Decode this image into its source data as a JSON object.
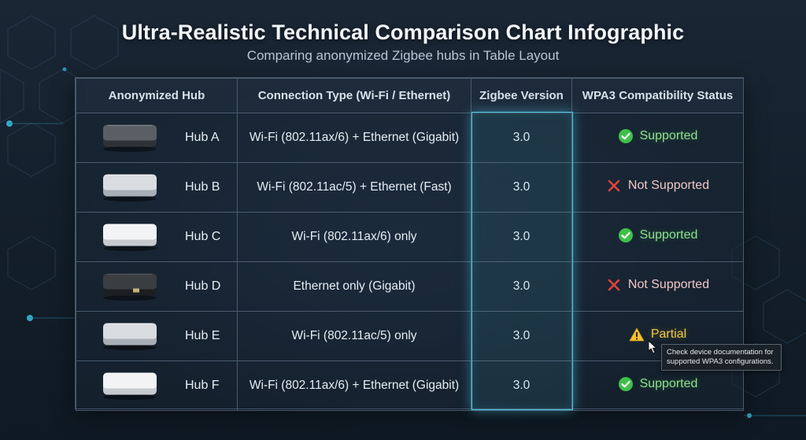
{
  "header": {
    "title": "Ultra-Realistic Technical Comparison Chart Infographic",
    "subtitle": "Comparing anonymized Zigbee hubs in Table Layout"
  },
  "table": {
    "columns": [
      "Anonymized Hub",
      "Connection Type (Wi-Fi / Ethernet)",
      "Zigbee Version",
      "WPA3 Compatibility Status"
    ],
    "rows": [
      {
        "hub": "Hub A",
        "device_style": "dark-gray",
        "connection": "Wi-Fi (802.11ax/6) + Ethernet (Gigabit)",
        "zigbee": "3.0",
        "status": "Supported",
        "status_type": "supported"
      },
      {
        "hub": "Hub B",
        "device_style": "light-gray",
        "connection": "Wi-Fi (802.11ac/5) + Ethernet (Fast)",
        "zigbee": "3.0",
        "status": "Not Supported",
        "status_type": "not-supported"
      },
      {
        "hub": "Hub C",
        "device_style": "white",
        "connection": "Wi-Fi (802.11ax/6) only",
        "zigbee": "3.0",
        "status": "Supported",
        "status_type": "supported"
      },
      {
        "hub": "Hub D",
        "device_style": "black",
        "connection": "Ethernet only (Gigabit)",
        "zigbee": "3.0",
        "status": "Not Supported",
        "status_type": "not-supported"
      },
      {
        "hub": "Hub E",
        "device_style": "light-gray",
        "connection": "Wi-Fi (802.11ac/5) only",
        "zigbee": "3.0",
        "status": "Partial",
        "status_type": "partial"
      },
      {
        "hub": "Hub F",
        "device_style": "white",
        "connection": "Wi-Fi (802.11ax/6) + Ethernet (Gigabit)",
        "zigbee": "3.0",
        "status": "Supported",
        "status_type": "supported"
      }
    ],
    "highlighted_column": "Zigbee Version"
  },
  "tooltip": {
    "text": "Check device documentation for supported WPA3 configurations."
  },
  "icons": {
    "supported": "check-circle-icon",
    "not_supported": "cross-icon",
    "partial": "warning-triangle-icon",
    "cursor": "mouse-pointer-icon"
  },
  "colors": {
    "supported": "#3fc04a",
    "not_supported": "#e0443c",
    "partial": "#f2c230",
    "highlight": "#4fc1dc",
    "background": "#14202c"
  }
}
